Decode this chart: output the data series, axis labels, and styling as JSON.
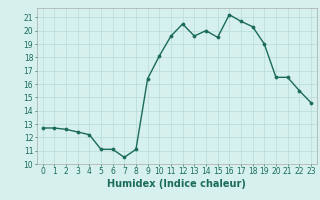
{
  "x": [
    0,
    1,
    2,
    3,
    4,
    5,
    6,
    7,
    8,
    9,
    10,
    11,
    12,
    13,
    14,
    15,
    16,
    17,
    18,
    19,
    20,
    21,
    22,
    23
  ],
  "y": [
    12.7,
    12.7,
    12.6,
    12.4,
    12.2,
    11.1,
    11.1,
    10.5,
    11.1,
    16.4,
    18.1,
    19.6,
    20.5,
    19.6,
    20.0,
    19.5,
    21.2,
    20.7,
    20.3,
    19.0,
    16.5,
    16.5,
    15.5,
    14.6
  ],
  "line_color": "#1a6b5a",
  "marker": "o",
  "marker_size": 2.2,
  "bg_color": "#d6f0ee",
  "grid_color": "#b8dbd8",
  "xlabel": "Humidex (Indice chaleur)",
  "xlim": [
    -0.5,
    23.5
  ],
  "ylim": [
    10,
    21.7
  ],
  "yticks": [
    10,
    11,
    12,
    13,
    14,
    15,
    16,
    17,
    18,
    19,
    20,
    21
  ],
  "xticks": [
    0,
    1,
    2,
    3,
    4,
    5,
    6,
    7,
    8,
    9,
    10,
    11,
    12,
    13,
    14,
    15,
    16,
    17,
    18,
    19,
    20,
    21,
    22,
    23
  ],
  "tick_label_fontsize": 5.5,
  "xlabel_fontsize": 7.0,
  "line_width": 1.0
}
